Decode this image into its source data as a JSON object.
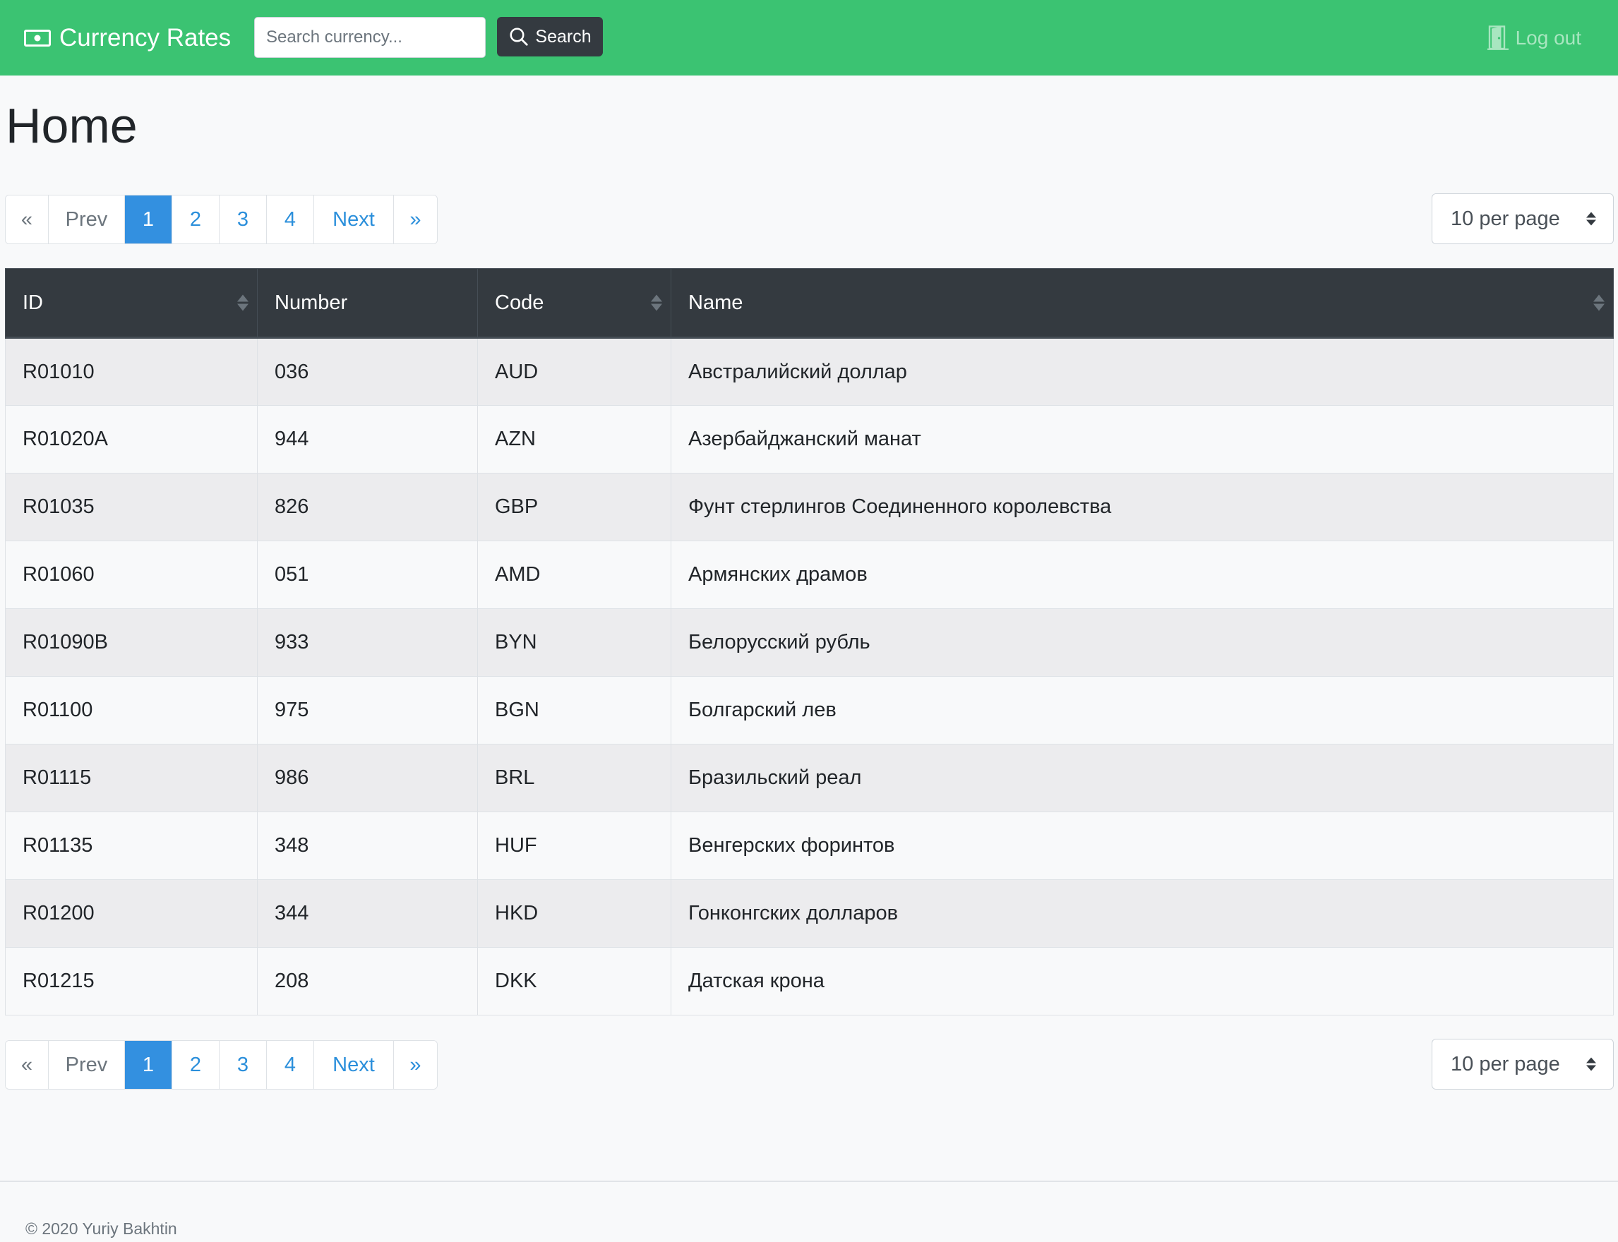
{
  "navbar": {
    "brand": "Currency Rates",
    "search_placeholder": "Search currency...",
    "search_label": "Search",
    "logout_label": "Log out"
  },
  "page": {
    "title": "Home"
  },
  "pagination": {
    "first": "«",
    "prev": "Prev",
    "pages": [
      "1",
      "2",
      "3",
      "4"
    ],
    "active_page": "1",
    "next": "Next",
    "last": "»",
    "per_page": "10 per page"
  },
  "table": {
    "columns": [
      "ID",
      "Number",
      "Code",
      "Name"
    ],
    "rows": [
      [
        "R01010",
        "036",
        "AUD",
        "Австралийский доллар"
      ],
      [
        "R01020A",
        "944",
        "AZN",
        "Азербайджанский манат"
      ],
      [
        "R01035",
        "826",
        "GBP",
        "Фунт стерлингов Соединенного королевства"
      ],
      [
        "R01060",
        "051",
        "AMD",
        "Армянских драмов"
      ],
      [
        "R01090B",
        "933",
        "BYN",
        "Белорусский рубль"
      ],
      [
        "R01100",
        "975",
        "BGN",
        "Болгарский лев"
      ],
      [
        "R01115",
        "986",
        "BRL",
        "Бразильский реал"
      ],
      [
        "R01135",
        "348",
        "HUF",
        "Венгерских форинтов"
      ],
      [
        "R01200",
        "344",
        "HKD",
        "Гонконгских долларов"
      ],
      [
        "R01215",
        "208",
        "DKK",
        "Датская крона"
      ]
    ]
  },
  "footer": {
    "copyright": "© 2020 Yuriy Bakhtin"
  },
  "colors": {
    "navbar": "#3bc372",
    "table_header": "#343a40",
    "active_page": "#3390e0",
    "link": "#2b8fdb"
  }
}
